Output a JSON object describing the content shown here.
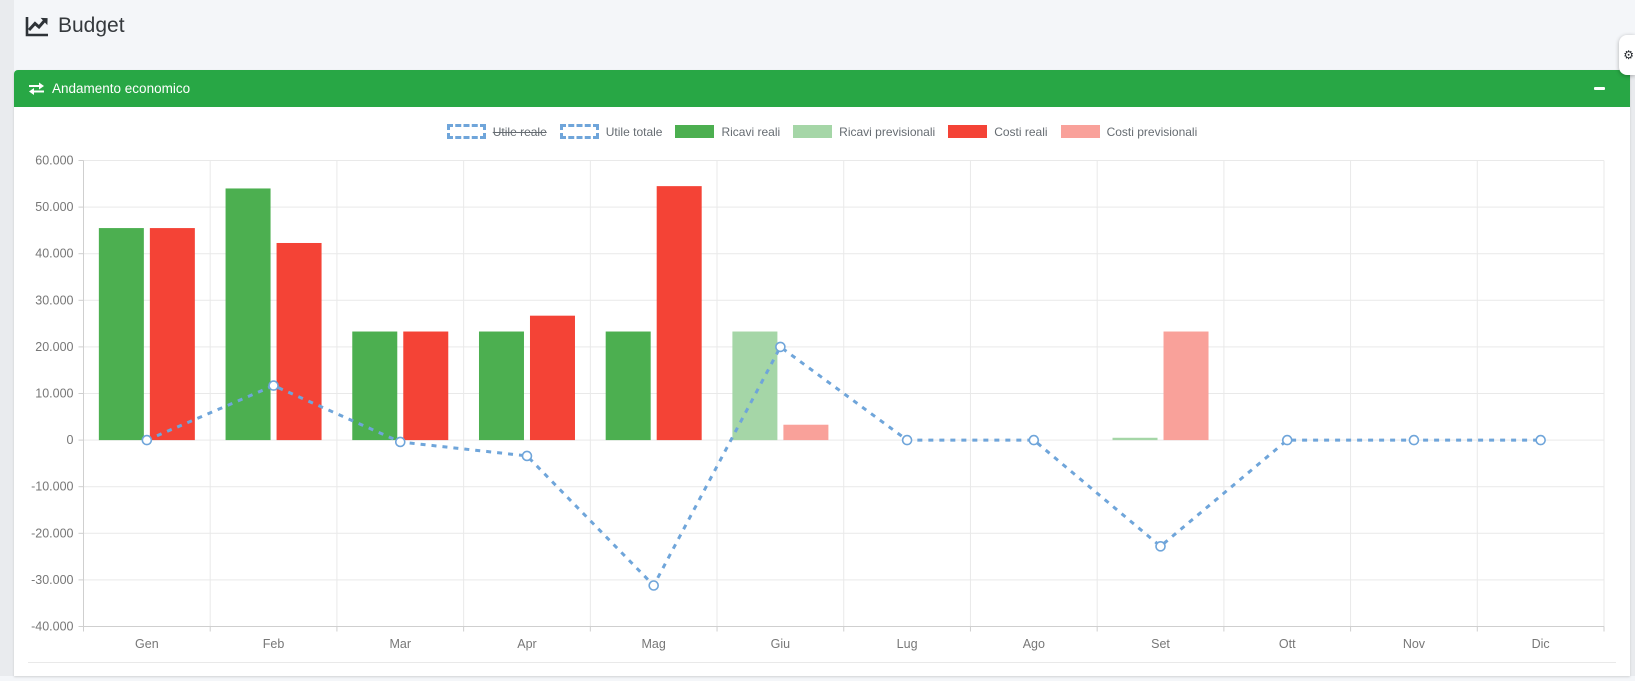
{
  "page": {
    "title": "Budget"
  },
  "panel": {
    "title": "Andamento economico",
    "header_icon": "exchange-arrows-icon",
    "collapse_icon": "minus-icon"
  },
  "flyout": {
    "icon": "gear-icon",
    "glyph": "⚙"
  },
  "colors": {
    "panel_header_green": "#28a745",
    "ricavi_reali": "#4caf50",
    "ricavi_previsionali": "#a5d6a7",
    "costi_reali": "#f44336",
    "costi_previsionali": "#f9a19a",
    "utile_line_blue": "#6fa5da",
    "grid": "#e9e9e9",
    "axis": "#cfcfcf",
    "tick_text": "#777777"
  },
  "chart_data": {
    "type": "bar+line",
    "title": "",
    "xlabel": "",
    "ylabel": "",
    "ylim": [
      -40000,
      60000
    ],
    "grid": true,
    "legend_position": "top",
    "categories": [
      "Gen",
      "Feb",
      "Mar",
      "Apr",
      "Mag",
      "Giu",
      "Lug",
      "Ago",
      "Set",
      "Ott",
      "Nov",
      "Dic"
    ],
    "y_ticks": [
      "60.000",
      "50.000",
      "40.000",
      "30.000",
      "20.000",
      "10.000",
      "0",
      "-10.000",
      "-20.000",
      "-30.000",
      "-40.000"
    ],
    "series": [
      {
        "name": "Utile reale",
        "type": "line",
        "hidden": true,
        "dashed": true,
        "color": "#6fa5da",
        "values": [
          null,
          null,
          null,
          null,
          null,
          null,
          null,
          null,
          null,
          null,
          null,
          null
        ]
      },
      {
        "name": "Utile totale",
        "type": "line",
        "hidden": false,
        "dashed": true,
        "color": "#6fa5da",
        "values": [
          0,
          11700,
          -400,
          -3400,
          -31200,
          20000,
          0,
          0,
          -22800,
          0,
          0,
          0
        ]
      },
      {
        "name": "Ricavi reali",
        "type": "bar",
        "slot": 0,
        "color": "#4caf50",
        "values": [
          45500,
          54000,
          23300,
          23300,
          23300,
          null,
          null,
          null,
          null,
          null,
          null,
          null
        ]
      },
      {
        "name": "Ricavi previsionali",
        "type": "bar",
        "slot": 0,
        "color": "#a5d6a7",
        "values": [
          null,
          null,
          null,
          null,
          null,
          23300,
          null,
          null,
          500,
          null,
          null,
          null
        ]
      },
      {
        "name": "Costi reali",
        "type": "bar",
        "slot": 1,
        "color": "#f44336",
        "values": [
          45500,
          42300,
          23300,
          26700,
          54500,
          null,
          null,
          null,
          null,
          null,
          null,
          null
        ]
      },
      {
        "name": "Costi previsionali",
        "type": "bar",
        "slot": 1,
        "color": "#f9a19a",
        "values": [
          null,
          null,
          null,
          null,
          null,
          3300,
          null,
          null,
          23300,
          null,
          null,
          null
        ]
      }
    ]
  }
}
